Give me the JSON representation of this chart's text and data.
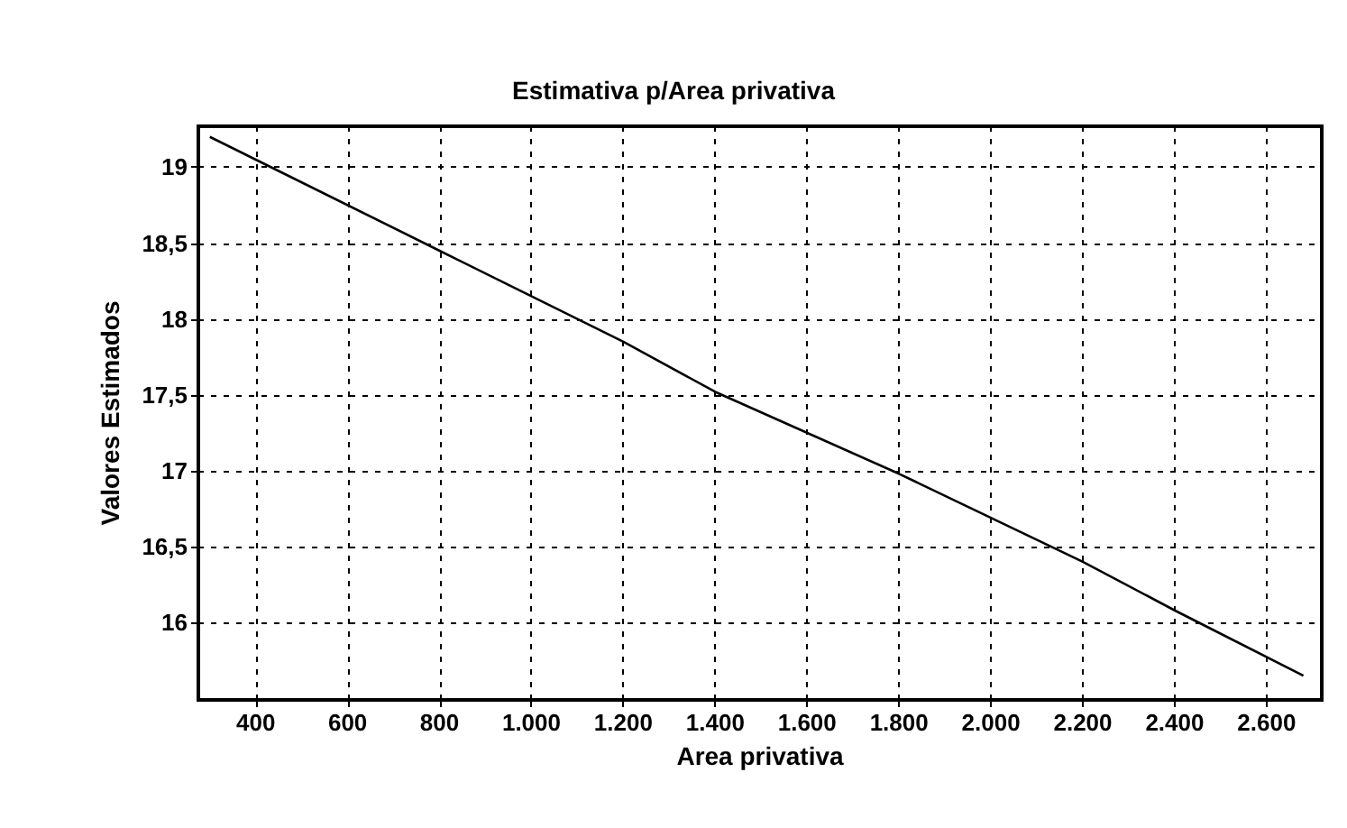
{
  "chart_data": {
    "type": "line",
    "title": "Estimativa p/Area privativa",
    "xlabel": "Area privativa",
    "ylabel": "Valores Estimados",
    "x": [
      300,
      400,
      800,
      1200,
      1400,
      1800,
      2200,
      2400,
      2680
    ],
    "series": [
      {
        "color": "#000000",
        "values": [
          19.2,
          19.05,
          18.45,
          17.85,
          17.52,
          16.98,
          16.4,
          16.08,
          15.65
        ]
      }
    ],
    "xlim": [
      275,
      2720
    ],
    "xticks": [
      400,
      600,
      800,
      {
        "value": 1000,
        "label": "1.000"
      },
      {
        "value": 1200,
        "label": "1.200"
      },
      {
        "value": 1400,
        "label": "1.400"
      },
      {
        "value": 1600,
        "label": "1.600"
      },
      {
        "value": 1800,
        "label": "1.800"
      },
      {
        "value": 2000,
        "label": "2.000"
      },
      {
        "value": 2200,
        "label": "2.200"
      },
      {
        "value": 2400,
        "label": "2.400"
      },
      {
        "value": 2600,
        "label": "2.600"
      }
    ],
    "ylim": [
      15.49,
      19.27
    ],
    "yticks": [
      16,
      {
        "value": 16.5,
        "label": "16,5"
      },
      17,
      {
        "value": 17.5,
        "label": "17,5"
      },
      18,
      {
        "value": 18.5,
        "label": "18,5"
      },
      19
    ],
    "grid": true,
    "marker": "none",
    "line_style": "solid"
  }
}
